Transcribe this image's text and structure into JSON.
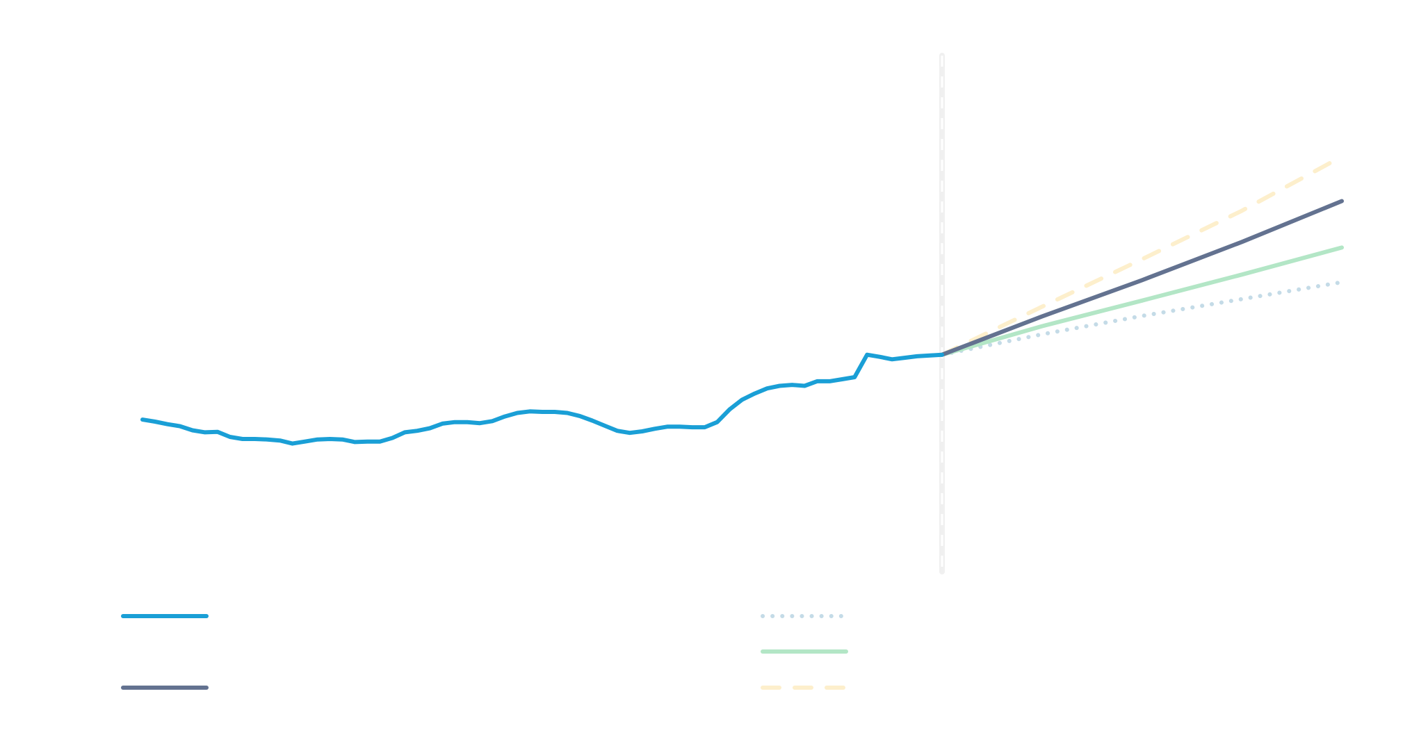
{
  "chart_data": {
    "type": "line",
    "title": "",
    "xlabel": "",
    "ylabel": "",
    "grid": false,
    "legend_position": "bottom",
    "x_range": [
      0,
      96
    ],
    "y_range": [
      0,
      100
    ],
    "forecast_start_x": 64,
    "series": [
      {
        "key": "historical",
        "style": "solid",
        "color": "#1a9fd6",
        "values": [
          [
            0,
            28.7
          ],
          [
            1,
            28.3
          ],
          [
            2,
            27.8
          ],
          [
            3,
            27.4
          ],
          [
            4,
            26.6
          ],
          [
            5,
            26.2
          ],
          [
            6,
            26.3
          ],
          [
            7,
            25.3
          ],
          [
            8,
            24.9
          ],
          [
            9,
            24.9
          ],
          [
            10,
            24.8
          ],
          [
            11,
            24.6
          ],
          [
            12,
            24.0
          ],
          [
            13,
            24.4
          ],
          [
            14,
            24.8
          ],
          [
            15,
            24.9
          ],
          [
            16,
            24.8
          ],
          [
            17,
            24.3
          ],
          [
            18,
            24.4
          ],
          [
            19,
            24.4
          ],
          [
            20,
            25.1
          ],
          [
            21,
            26.2
          ],
          [
            22,
            26.5
          ],
          [
            23,
            27.0
          ],
          [
            24,
            27.9
          ],
          [
            25,
            28.2
          ],
          [
            26,
            28.2
          ],
          [
            27,
            28.0
          ],
          [
            28,
            28.4
          ],
          [
            29,
            29.3
          ],
          [
            30,
            30.0
          ],
          [
            31,
            30.3
          ],
          [
            32,
            30.2
          ],
          [
            33,
            30.2
          ],
          [
            34,
            30.0
          ],
          [
            35,
            29.4
          ],
          [
            36,
            28.5
          ],
          [
            37,
            27.5
          ],
          [
            38,
            26.5
          ],
          [
            39,
            26.1
          ],
          [
            40,
            26.4
          ],
          [
            41,
            26.9
          ],
          [
            42,
            27.3
          ],
          [
            43,
            27.3
          ],
          [
            44,
            27.2
          ],
          [
            45,
            27.2
          ],
          [
            46,
            28.2
          ],
          [
            47,
            30.7
          ],
          [
            48,
            32.6
          ],
          [
            49,
            33.8
          ],
          [
            50,
            34.8
          ],
          [
            51,
            35.3
          ],
          [
            52,
            35.5
          ],
          [
            53,
            35.3
          ],
          [
            54,
            36.2
          ],
          [
            55,
            36.2
          ],
          [
            56,
            36.6
          ],
          [
            57,
            37.0
          ],
          [
            58,
            41.4
          ],
          [
            59,
            41.0
          ],
          [
            60,
            40.5
          ],
          [
            61,
            40.8
          ],
          [
            62,
            41.1
          ],
          [
            64,
            41.4
          ]
        ]
      },
      {
        "key": "forecast-dotted",
        "style": "dotted",
        "color": "#c4dbe7",
        "values": [
          [
            64,
            41.4
          ],
          [
            72,
            45.4
          ],
          [
            80,
            49.0
          ],
          [
            88,
            52.3
          ],
          [
            96,
            55.6
          ]
        ]
      },
      {
        "key": "forecast-solid-green",
        "style": "solid",
        "color": "#b3e6c6",
        "values": [
          [
            64,
            41.4
          ],
          [
            72,
            47.0
          ],
          [
            80,
            52.0
          ],
          [
            88,
            57.1
          ],
          [
            96,
            62.4
          ]
        ]
      },
      {
        "key": "forecast-solid-slate",
        "style": "solid",
        "color": "#637290",
        "values": [
          [
            64,
            41.4
          ],
          [
            72,
            48.9
          ],
          [
            80,
            56.0
          ],
          [
            88,
            63.5
          ],
          [
            96,
            71.5
          ]
        ]
      },
      {
        "key": "forecast-dashed",
        "style": "dashed",
        "color": "#fdefcc",
        "values": [
          [
            64,
            41.4
          ],
          [
            72,
            50.8
          ],
          [
            80,
            60.1
          ],
          [
            88,
            69.6
          ],
          [
            96,
            80.2
          ]
        ]
      }
    ],
    "legend": [
      {
        "series": "historical",
        "label": "",
        "column": 0,
        "row": 0
      },
      {
        "series": "forecast-solid-slate",
        "label": "",
        "column": 0,
        "row": 2
      },
      {
        "series": "forecast-dotted",
        "label": "",
        "column": 1,
        "row": 0
      },
      {
        "series": "forecast-solid-green",
        "label": "",
        "column": 1,
        "row": 1
      },
      {
        "series": "forecast-dashed",
        "label": "",
        "column": 1,
        "row": 2
      }
    ]
  }
}
